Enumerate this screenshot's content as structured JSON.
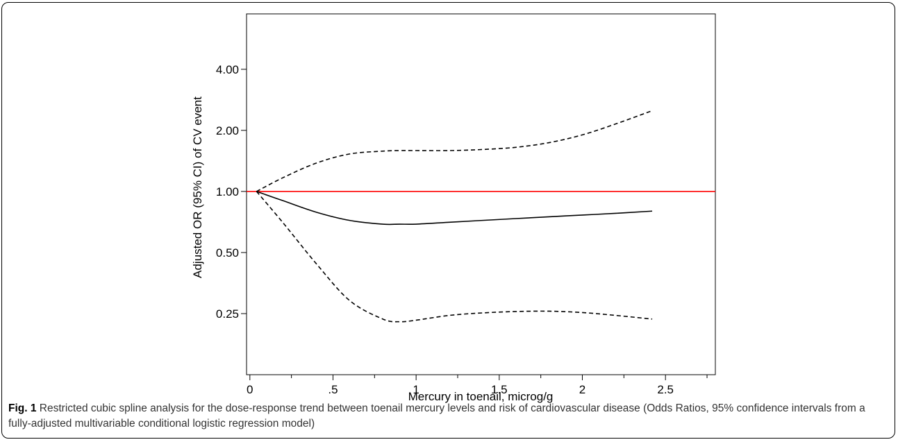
{
  "caption": {
    "label": "Fig. 1",
    "text": "Restricted cubic spline analysis for the dose-response trend between toenail mercury levels and risk of cardiovascular disease (Odds Ratios, 95% confidence intervals from a fully-adjusted multivariable conditional logistic regression model)"
  },
  "chart_data": {
    "type": "line",
    "title": "",
    "xlabel": "Mercury in toenail, microg/g",
    "ylabel": "Adjusted OR (95% CI) of CV event",
    "x_scale": "linear",
    "y_scale": "log",
    "xlim": [
      -0.02,
      2.8
    ],
    "ylim": [
      0.125,
      7.5
    ],
    "x_ticks": [
      0,
      0.5,
      1,
      1.5,
      2,
      2.5
    ],
    "x_tick_labels": [
      "0",
      ".5",
      "1",
      "1.5",
      "2",
      "2.5"
    ],
    "x_minor_ticks": [
      0.25,
      0.75,
      1.25,
      1.75,
      2.25,
      2.75
    ],
    "y_ticks": [
      0.25,
      0.5,
      1,
      2,
      4
    ],
    "y_tick_labels": [
      "0.25",
      "0.50",
      "1.00",
      "2.00",
      "4.00"
    ],
    "grid": false,
    "reference_line": {
      "y": 1,
      "color": "#ff0000"
    },
    "series": [
      {
        "role": "estimate",
        "style": "solid",
        "color": "#000000",
        "x": [
          0.04,
          0.2,
          0.4,
          0.6,
          0.8,
          0.9,
          1.0,
          1.2,
          1.4,
          1.6,
          1.8,
          2.0,
          2.2,
          2.42
        ],
        "y": [
          1.0,
          0.9,
          0.79,
          0.72,
          0.69,
          0.69,
          0.69,
          0.705,
          0.72,
          0.735,
          0.75,
          0.765,
          0.78,
          0.8
        ]
      },
      {
        "role": "upper_ci",
        "style": "dashed",
        "color": "#000000",
        "x": [
          0.04,
          0.2,
          0.4,
          0.6,
          0.8,
          0.9,
          1.0,
          1.2,
          1.4,
          1.6,
          1.8,
          2.0,
          2.2,
          2.42
        ],
        "y": [
          1.0,
          1.17,
          1.38,
          1.53,
          1.58,
          1.59,
          1.59,
          1.59,
          1.61,
          1.65,
          1.74,
          1.9,
          2.15,
          2.5
        ]
      },
      {
        "role": "lower_ci",
        "style": "dashed",
        "color": "#000000",
        "x": [
          0.04,
          0.2,
          0.4,
          0.6,
          0.8,
          0.9,
          1.0,
          1.2,
          1.4,
          1.6,
          1.8,
          2.0,
          2.2,
          2.42
        ],
        "y": [
          1.0,
          0.7,
          0.44,
          0.29,
          0.235,
          0.228,
          0.232,
          0.245,
          0.252,
          0.256,
          0.257,
          0.253,
          0.245,
          0.235
        ]
      }
    ]
  }
}
